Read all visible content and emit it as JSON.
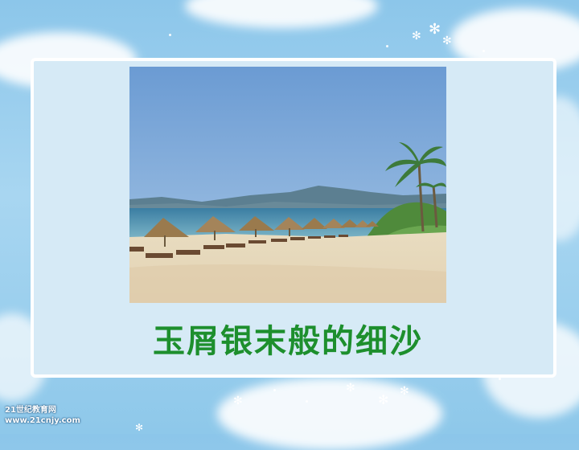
{
  "slide": {
    "caption": "玉屑银末般的细沙",
    "photo_icon": "beach-photo",
    "logo_line1": "21世纪教育网",
    "logo_line2": "www.21cnjy.com"
  },
  "colors": {
    "background": "#9fd1ef",
    "panel": "#d6eaf6",
    "caption": "#1d8f2d"
  }
}
